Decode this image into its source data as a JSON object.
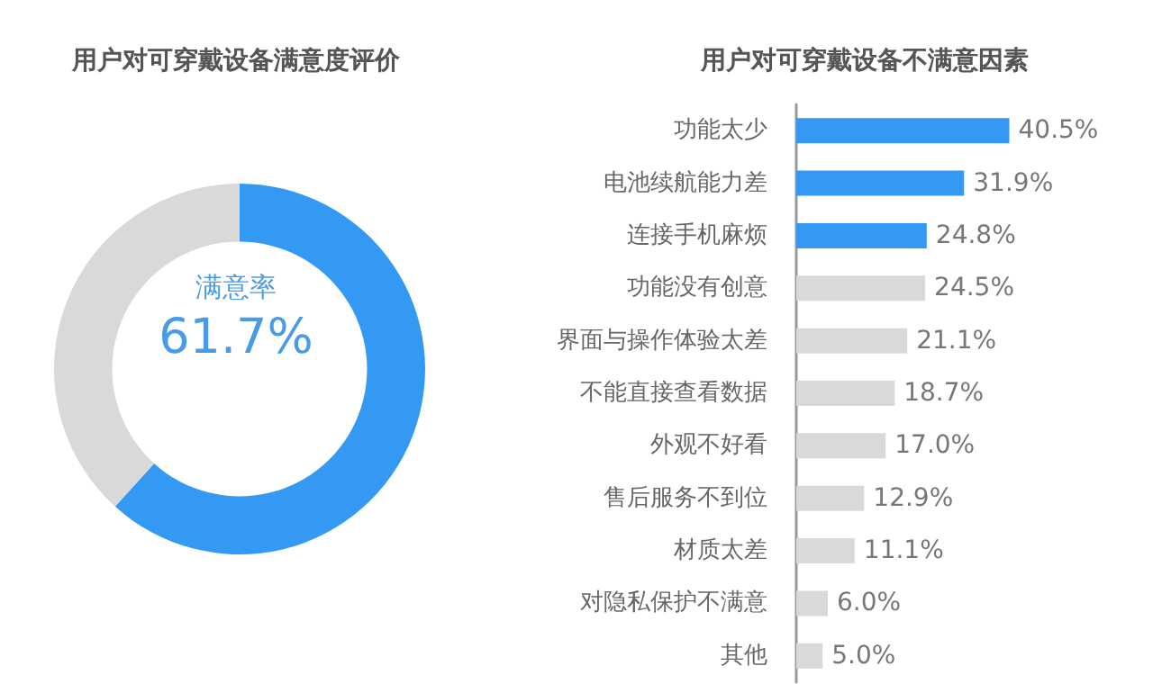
{
  "chart_data": [
    {
      "type": "donut",
      "title": "用户对可穿戴设备满意度评价",
      "categories": [
        "满意率",
        null
      ],
      "values": [
        61.7,
        38.3
      ],
      "colors": [
        "#3399f3",
        "#d9d9d9"
      ],
      "value_labels": [
        "61.7%",
        null
      ],
      "legend": false
    },
    {
      "type": "bar",
      "orientation": "horizontal",
      "title": "用户对可穿戴设备不满意因素",
      "categories": [
        "功能太少",
        "电池续航能力差",
        "连接手机麻烦",
        "功能没有创意",
        "界面与操作体验太差",
        "不能直接查看数据",
        "外观不好看",
        "售后服务不到位",
        "材质太差",
        "对隐私保护不满意",
        "其他"
      ],
      "values": [
        40.5,
        31.9,
        24.8,
        24.5,
        21.1,
        18.7,
        17.0,
        12.9,
        11.1,
        6.0,
        5.0
      ],
      "colors": [
        "#3399f3",
        "#3399f3",
        "#3399f3",
        "#d9d9d9",
        "#d9d9d9",
        "#d9d9d9",
        "#d9d9d9",
        "#d9d9d9",
        "#d9d9d9",
        "#d9d9d9",
        "#d9d9d9"
      ],
      "value_labels": [
        "40.5%",
        "31.9%",
        "24.8%",
        "24.5%",
        "21.1%",
        "18.7%",
        "17.0%",
        "12.9%",
        "11.1%",
        "6.0%",
        "5.0%"
      ],
      "legend": false
    }
  ]
}
